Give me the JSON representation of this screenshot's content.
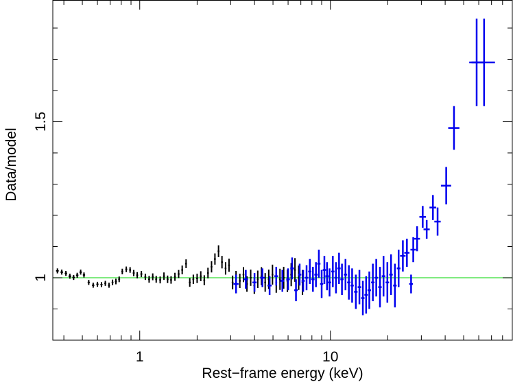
{
  "chart_data": {
    "type": "scatter",
    "title": "",
    "xlabel": "Rest−frame energy (keV)",
    "ylabel": "Data/model",
    "x_scale": "log",
    "xlim": [
      0.35,
      90
    ],
    "ylim": [
      0.8,
      1.89
    ],
    "x_ticks": [
      {
        "value": 1,
        "label": "1"
      },
      {
        "value": 10,
        "label": "10"
      }
    ],
    "y_ticks": [
      {
        "value": 1,
        "label": "1"
      },
      {
        "value": 1.5,
        "label": "1.5"
      }
    ],
    "reference_line": {
      "y": 1.0,
      "color": "#33dd33"
    },
    "series": [
      {
        "color": "#000000",
        "marker": "error-cross",
        "points": [
          [
            0.37,
            1.022,
            0.006,
            0.008
          ],
          [
            0.39,
            1.018,
            0.006,
            0.008
          ],
          [
            0.41,
            1.014,
            0.006,
            0.008
          ],
          [
            0.43,
            1.005,
            0.007,
            0.008
          ],
          [
            0.45,
            1.001,
            0.007,
            0.008
          ],
          [
            0.47,
            1.008,
            0.007,
            0.008
          ],
          [
            0.49,
            1.018,
            0.007,
            0.008
          ],
          [
            0.51,
            1.009,
            0.007,
            0.008
          ],
          [
            0.54,
            0.985,
            0.007,
            0.008
          ],
          [
            0.57,
            0.976,
            0.008,
            0.008
          ],
          [
            0.6,
            0.979,
            0.008,
            0.008
          ],
          [
            0.63,
            0.978,
            0.008,
            0.008
          ],
          [
            0.66,
            0.982,
            0.008,
            0.008
          ],
          [
            0.69,
            0.976,
            0.008,
            0.008
          ],
          [
            0.72,
            0.985,
            0.008,
            0.009
          ],
          [
            0.75,
            0.988,
            0.009,
            0.009
          ],
          [
            0.78,
            0.995,
            0.009,
            0.009
          ],
          [
            0.81,
            1.02,
            0.009,
            0.009
          ],
          [
            0.85,
            1.027,
            0.01,
            0.009
          ],
          [
            0.89,
            1.025,
            0.01,
            0.009
          ],
          [
            0.93,
            1.015,
            0.011,
            0.01
          ],
          [
            0.97,
            1.008,
            0.011,
            0.01
          ],
          [
            1.02,
            1.012,
            0.012,
            0.01
          ],
          [
            1.07,
            1.003,
            0.012,
            0.01
          ],
          [
            1.12,
            0.995,
            0.013,
            0.011
          ],
          [
            1.17,
            1.003,
            0.013,
            0.011
          ],
          [
            1.22,
            0.995,
            0.014,
            0.011
          ],
          [
            1.28,
            0.993,
            0.014,
            0.011
          ],
          [
            1.34,
            1.005,
            0.015,
            0.012
          ],
          [
            1.4,
            0.995,
            0.016,
            0.012
          ],
          [
            1.46,
            0.993,
            0.016,
            0.012
          ],
          [
            1.53,
            1.003,
            0.017,
            0.013
          ],
          [
            1.6,
            1.012,
            0.018,
            0.013
          ],
          [
            1.67,
            1.025,
            0.018,
            0.014
          ],
          [
            1.75,
            1.045,
            0.019,
            0.014
          ],
          [
            1.83,
            0.985,
            0.02,
            0.014
          ],
          [
            1.91,
            0.995,
            0.021,
            0.015
          ],
          [
            2.0,
            0.998,
            0.022,
            0.015
          ],
          [
            2.09,
            1.005,
            0.023,
            0.016
          ],
          [
            2.18,
            0.992,
            0.024,
            0.016
          ],
          [
            2.28,
            1.015,
            0.025,
            0.017
          ],
          [
            2.38,
            1.035,
            0.026,
            0.018
          ],
          [
            2.48,
            1.06,
            0.027,
            0.018
          ],
          [
            2.59,
            1.085,
            0.028,
            0.019
          ],
          [
            2.7,
            1.05,
            0.029,
            0.02
          ],
          [
            2.82,
            1.03,
            0.03,
            0.02
          ],
          [
            2.94,
            1.04,
            0.031,
            0.021
          ],
          [
            3.07,
            0.985,
            0.033,
            0.022
          ],
          [
            3.2,
            1.0,
            0.034,
            0.022
          ],
          [
            3.35,
            0.99,
            0.036,
            0.023
          ],
          [
            3.5,
            1.01,
            0.037,
            0.024
          ],
          [
            3.65,
            0.98,
            0.039,
            0.025
          ],
          [
            3.82,
            1.0,
            0.041,
            0.026
          ],
          [
            3.99,
            0.975,
            0.043,
            0.027
          ],
          [
            4.16,
            0.995,
            0.045,
            0.028
          ],
          [
            4.35,
            1.005,
            0.047,
            0.029
          ],
          [
            4.55,
            0.985,
            0.049,
            0.03
          ],
          [
            4.75,
            0.995,
            0.051,
            0.031
          ],
          [
            4.97,
            1.01,
            0.053,
            0.032
          ],
          [
            5.2,
            0.985,
            0.056,
            0.033
          ],
          [
            5.44,
            0.995,
            0.058,
            0.034
          ],
          [
            5.69,
            1.0,
            0.061,
            0.035
          ],
          [
            5.95,
            0.99,
            0.064,
            0.036
          ],
          [
            6.23,
            1.01,
            0.067,
            0.037
          ],
          [
            6.52,
            1.025,
            0.07,
            0.038
          ],
          [
            6.82,
            1.0,
            0.073,
            0.039
          ],
          [
            7.14,
            0.985,
            0.076,
            0.04
          ]
        ]
      },
      {
        "color": "#0000ee",
        "marker": "error-cross",
        "points": [
          [
            3.2,
            0.98,
            0.1,
            0.03
          ],
          [
            3.6,
            0.995,
            0.1,
            0.03
          ],
          [
            4.0,
            0.985,
            0.1,
            0.03
          ],
          [
            4.4,
            1.0,
            0.12,
            0.03
          ],
          [
            4.8,
            0.975,
            0.12,
            0.03
          ],
          [
            5.2,
            1.005,
            0.12,
            0.03
          ],
          [
            5.6,
            0.99,
            0.13,
            0.035
          ],
          [
            6.0,
            0.995,
            0.13,
            0.035
          ],
          [
            6.3,
            1.03,
            0.14,
            0.035
          ],
          [
            6.6,
            0.96,
            0.14,
            0.035
          ],
          [
            6.9,
            1.01,
            0.14,
            0.035
          ],
          [
            7.2,
            0.99,
            0.14,
            0.035
          ],
          [
            7.5,
            1.0,
            0.15,
            0.04
          ],
          [
            7.8,
            1.02,
            0.15,
            0.04
          ],
          [
            8.1,
            0.995,
            0.16,
            0.04
          ],
          [
            8.4,
            1.01,
            0.16,
            0.04
          ],
          [
            8.7,
            1.045,
            0.17,
            0.045
          ],
          [
            9.0,
            0.98,
            0.17,
            0.045
          ],
          [
            9.3,
            1.025,
            0.18,
            0.045
          ],
          [
            9.6,
            1.005,
            0.18,
            0.045
          ],
          [
            9.9,
            0.985,
            0.19,
            0.045
          ],
          [
            10.3,
            1.02,
            0.2,
            0.05
          ],
          [
            10.7,
            1.0,
            0.2,
            0.05
          ],
          [
            11.1,
            1.03,
            0.22,
            0.05
          ],
          [
            11.5,
            0.995,
            0.22,
            0.05
          ],
          [
            12.0,
            1.01,
            0.24,
            0.05
          ],
          [
            12.5,
            0.985,
            0.25,
            0.055
          ],
          [
            13.0,
            0.975,
            0.26,
            0.055
          ],
          [
            13.6,
            0.955,
            0.28,
            0.055
          ],
          [
            14.2,
            0.97,
            0.29,
            0.055
          ],
          [
            14.8,
            0.935,
            0.3,
            0.055
          ],
          [
            15.4,
            0.945,
            0.32,
            0.06
          ],
          [
            16.0,
            0.96,
            0.33,
            0.06
          ],
          [
            16.7,
            0.985,
            0.35,
            0.06
          ],
          [
            17.4,
            1.0,
            0.36,
            0.06
          ],
          [
            18.2,
            0.97,
            0.38,
            0.065
          ],
          [
            19.0,
            1.005,
            0.4,
            0.065
          ],
          [
            19.9,
            0.985,
            0.42,
            0.065
          ],
          [
            20.8,
            1.01,
            0.44,
            0.065
          ],
          [
            21.8,
            0.975,
            0.46,
            0.07
          ],
          [
            22.8,
            1.03,
            0.5,
            0.06
          ],
          [
            24.0,
            1.07,
            0.8,
            0.05
          ],
          [
            25.2,
            1.08,
            0.8,
            0.045
          ],
          [
            26.5,
            0.98,
            0.6,
            0.03
          ],
          [
            27.2,
            1.09,
            0.9,
            0.04
          ],
          [
            28.5,
            1.125,
            1.0,
            0.04
          ],
          [
            30.5,
            1.195,
            1.2,
            0.035
          ],
          [
            32.0,
            1.155,
            1.2,
            0.03
          ],
          [
            34.5,
            1.225,
            1.4,
            0.04
          ],
          [
            36.5,
            1.18,
            1.4,
            0.045
          ],
          [
            40.5,
            1.295,
            2.5,
            0.06
          ],
          [
            44.5,
            1.48,
            3.0,
            0.07
          ],
          [
            58.5,
            1.69,
            5.0,
            0.14
          ],
          [
            64.0,
            1.69,
            9.0,
            0.14
          ]
        ]
      }
    ]
  }
}
